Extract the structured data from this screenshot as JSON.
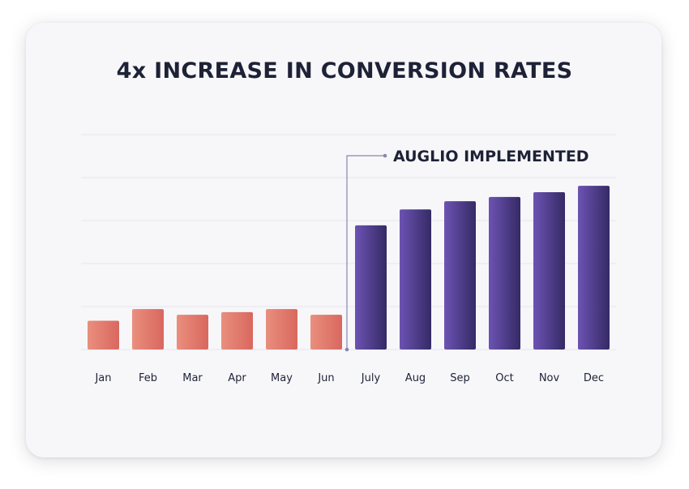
{
  "chart_data": {
    "type": "bar",
    "title": "4x INCREASE IN CONVERSION RATES",
    "xlabel": "",
    "ylabel": "",
    "categories": [
      "Jan",
      "Feb",
      "Mar",
      "Apr",
      "May",
      "Jun",
      "July",
      "Aug",
      "Sep",
      "Oct",
      "Nov",
      "Dec"
    ],
    "values": [
      0.67,
      0.94,
      0.81,
      0.87,
      0.94,
      0.81,
      2.89,
      3.26,
      3.45,
      3.55,
      3.66,
      3.81
    ],
    "ylim": [
      0,
      5
    ],
    "y_ticks_shown": false,
    "grid": true,
    "colors": {
      "before": [
        "#e98f7e",
        "#d9675e"
      ],
      "after": [
        "#6c53b3",
        "#352a65"
      ],
      "marker": "#8a86b0"
    },
    "annotation": {
      "text": "AUGLIO IMPLEMENTED",
      "after_category": "Jun"
    },
    "highlight_from_category": "July"
  }
}
